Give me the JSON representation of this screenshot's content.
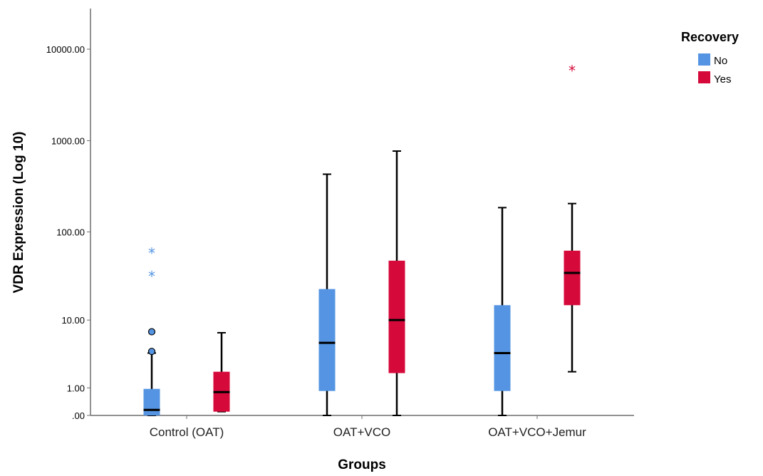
{
  "chart_data": {
    "type": "boxplot",
    "title": "",
    "xlabel": "Groups",
    "ylabel": "VDR Expression (Log 10)",
    "y_scale": "log10(x+1)",
    "ylim": [
      0,
      20000
    ],
    "y_ticks": [
      0,
      1,
      10,
      100,
      1000,
      10000
    ],
    "y_tick_labels": [
      ".00",
      "1.00",
      "10.00",
      "100.00",
      "1000.00",
      "10000.00"
    ],
    "categories": [
      "Control (OAT)",
      "OAT+VCO",
      "OAT+VCO+Jemur"
    ],
    "legend": {
      "title": "Recovery",
      "position": "top-right"
    },
    "grid": false,
    "series": [
      {
        "name": "No",
        "color": "#5494e2",
        "boxes": [
          {
            "whisker_low": 0,
            "q1": 0,
            "median": 0.15,
            "q3": 0.95,
            "whisker_high": 3.8,
            "outliers_circle": [
              7.2,
              4.0
            ],
            "outliers_extreme": [
              60,
              33
            ]
          },
          {
            "whisker_low": 0,
            "q1": 0.85,
            "median": 5.2,
            "q3": 23,
            "whisker_high": 430,
            "outliers_circle": [],
            "outliers_extreme": []
          },
          {
            "whisker_low": 0,
            "q1": 0.85,
            "median": 3.8,
            "q3": 15,
            "whisker_high": 185,
            "outliers_circle": [],
            "outliers_extreme": []
          }
        ]
      },
      {
        "name": "Yes",
        "color": "#d6093b",
        "boxes": [
          {
            "whisker_low": 0.1,
            "q1": 0.1,
            "median": 0.8,
            "q3": 2.0,
            "whisker_high": 7.0,
            "outliers_circle": [],
            "outliers_extreme": []
          },
          {
            "whisker_low": 0,
            "q1": 1.9,
            "median": 10,
            "q3": 48,
            "whisker_high": 770,
            "outliers_circle": [],
            "outliers_extreme": []
          },
          {
            "whisker_low": 2.0,
            "q1": 15,
            "median": 35,
            "q3": 62,
            "whisker_high": 205,
            "outliers_circle": [],
            "outliers_extreme": [
              6000
            ]
          }
        ]
      }
    ]
  }
}
